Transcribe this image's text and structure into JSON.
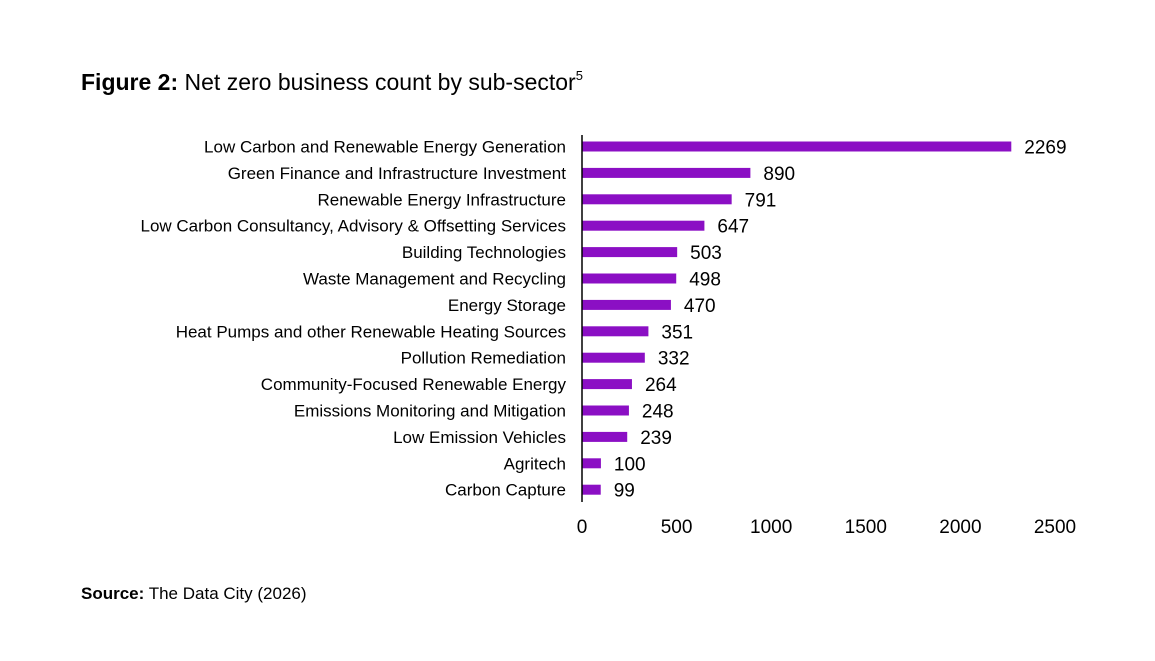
{
  "figure": {
    "label": "Figure 2:",
    "title": "Net zero business count by sub-sector",
    "footnote": "5"
  },
  "source": {
    "label": "Source:",
    "text": "The Data City (2026)"
  },
  "colors": {
    "bar": "#8B0FC4",
    "axis": "#000000"
  },
  "chart_data": {
    "type": "bar",
    "orientation": "horizontal",
    "title": "Net zero business count by sub-sector",
    "xlabel": "",
    "ylabel": "",
    "categories": [
      "Low Carbon and Renewable Energy Generation",
      "Green Finance and Infrastructure Investment",
      "Renewable Energy Infrastructure",
      "Low Carbon Consultancy, Advisory & Offsetting Services",
      "Building Technologies",
      "Waste Management and Recycling",
      "Energy Storage",
      "Heat Pumps and other Renewable Heating Sources",
      "Pollution Remediation",
      "Community-Focused Renewable Energy",
      "Emissions Monitoring and Mitigation",
      "Low Emission Vehicles",
      "Agritech",
      "Carbon Capture"
    ],
    "values": [
      2269,
      890,
      791,
      647,
      503,
      498,
      470,
      351,
      332,
      264,
      248,
      239,
      100,
      99
    ],
    "xlim": [
      0,
      2500
    ],
    "xticks": [
      0,
      500,
      1000,
      1500,
      2000,
      2500
    ],
    "grid": false,
    "legend": "none",
    "data_labels": true
  }
}
